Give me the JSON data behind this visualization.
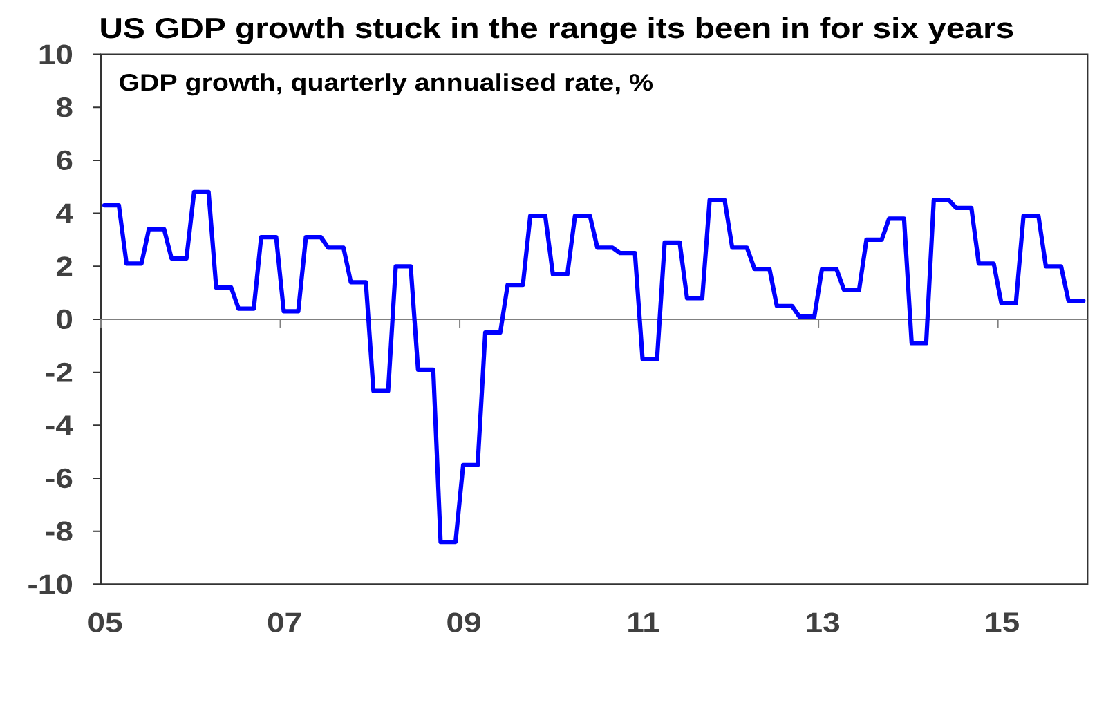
{
  "chart_data": {
    "type": "line",
    "title": "US GDP growth stuck in the range its been in for six years",
    "subtitle": "GDP growth, quarterly annualised rate, %",
    "x": [
      "2005-01-15",
      "2005-03-15",
      "2005-04-15",
      "2005-06-15",
      "2005-07-15",
      "2005-09-15",
      "2005-10-15",
      "2005-12-15",
      "2006-01-15",
      "2006-03-15",
      "2006-04-15",
      "2006-06-15",
      "2006-07-15",
      "2006-09-15",
      "2006-10-15",
      "2006-12-15",
      "2007-01-15",
      "2007-03-15",
      "2007-04-15",
      "2007-06-15",
      "2007-07-15",
      "2007-09-15",
      "2007-10-15",
      "2007-12-15",
      "2008-01-15",
      "2008-03-15",
      "2008-04-15",
      "2008-06-15",
      "2008-07-15",
      "2008-09-15",
      "2008-10-15",
      "2008-12-15",
      "2009-01-15",
      "2009-03-15",
      "2009-04-15",
      "2009-06-15",
      "2009-07-15",
      "2009-09-15",
      "2009-10-15",
      "2009-12-15",
      "2010-01-15",
      "2010-03-15",
      "2010-04-15",
      "2010-06-15",
      "2010-07-15",
      "2010-09-15",
      "2010-10-15",
      "2010-12-15",
      "2011-01-15",
      "2011-03-15",
      "2011-04-15",
      "2011-06-15",
      "2011-07-15",
      "2011-09-15",
      "2011-10-15",
      "2011-12-15",
      "2012-01-15",
      "2012-03-15",
      "2012-04-15",
      "2012-06-15",
      "2012-07-15",
      "2012-09-15",
      "2012-10-15",
      "2012-12-15",
      "2013-01-15",
      "2013-03-15",
      "2013-04-15",
      "2013-06-15",
      "2013-07-15",
      "2013-09-15",
      "2013-10-15",
      "2013-12-15",
      "2014-01-15",
      "2014-03-15",
      "2014-04-15",
      "2014-06-15",
      "2014-07-15",
      "2014-09-15",
      "2014-10-15",
      "2014-12-15",
      "2015-01-15",
      "2015-03-15",
      "2015-04-15",
      "2015-06-15",
      "2015-07-15",
      "2015-09-15",
      "2015-10-15",
      "2015-12-15"
    ],
    "values": [
      4.3,
      4.3,
      2.1,
      2.1,
      3.4,
      3.4,
      2.3,
      2.3,
      4.8,
      4.8,
      1.2,
      1.2,
      0.4,
      0.4,
      3.1,
      3.1,
      0.3,
      0.3,
      3.1,
      3.1,
      2.7,
      2.7,
      1.4,
      1.4,
      -2.7,
      -2.7,
      2.0,
      2.0,
      -1.9,
      -1.9,
      -8.4,
      -8.4,
      -5.5,
      -5.5,
      -0.5,
      -0.5,
      1.3,
      1.3,
      3.9,
      3.9,
      1.7,
      1.7,
      3.9,
      3.9,
      2.7,
      2.7,
      2.5,
      2.5,
      -1.5,
      -1.5,
      2.9,
      2.9,
      0.8,
      0.8,
      4.5,
      4.5,
      2.7,
      2.7,
      1.9,
      1.9,
      0.5,
      0.5,
      0.1,
      0.1,
      1.9,
      1.9,
      1.1,
      1.1,
      3.0,
      3.0,
      3.8,
      3.8,
      -0.9,
      -0.9,
      4.5,
      4.5,
      4.2,
      4.2,
      2.1,
      2.1,
      0.6,
      0.6,
      3.9,
      3.9,
      2.0,
      2.0,
      0.7,
      0.7
    ],
    "color": "#0000ff",
    "xlim": [
      "2005",
      "2016"
    ],
    "xticks": [
      {
        "value": "2005",
        "label": "05"
      },
      {
        "value": "2007",
        "label": "07"
      },
      {
        "value": "2009",
        "label": "09"
      },
      {
        "value": "2011",
        "label": "11"
      },
      {
        "value": "2013",
        "label": "13"
      },
      {
        "value": "2015",
        "label": "15"
      }
    ],
    "ylim": [
      -10,
      10
    ],
    "yticks": [
      -10,
      -8,
      -6,
      -4,
      -2,
      0,
      2,
      4,
      6,
      8,
      10
    ],
    "ref_lines": [
      {
        "axis": "y",
        "value": 0,
        "color": "#808080"
      }
    ]
  }
}
